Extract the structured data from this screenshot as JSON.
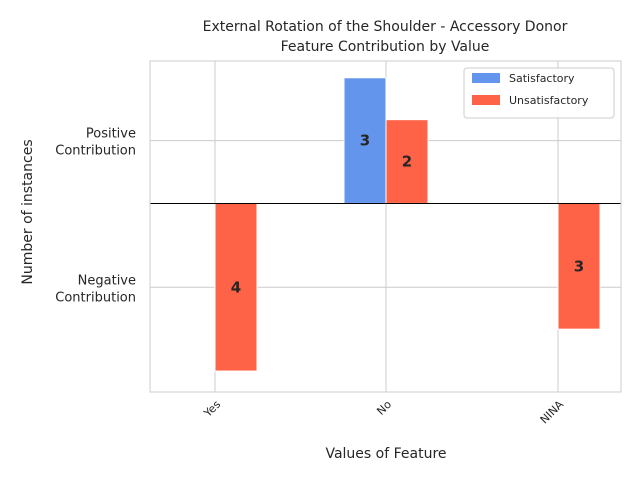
{
  "chart_data": {
    "type": "bar",
    "title_line1": "External Rotation of the Shoulder - Accessory Donor",
    "title_line2": "Feature Contribution by Value",
    "xlabel": "Values of Feature",
    "ylabel": "Number of instances",
    "categories": [
      "Yes",
      "No",
      "NINA"
    ],
    "series": [
      {
        "name": "Satisfactory",
        "color": "#6495ED",
        "values": [
          0,
          3,
          0
        ]
      },
      {
        "name": "Unsatisfactory",
        "color": "#FF6347",
        "values": [
          -4,
          2,
          -3
        ]
      }
    ],
    "ytick_labels": [
      {
        "line1": "Positive",
        "line2": "Contribution",
        "value": 1.5
      },
      {
        "line1": "Negative",
        "line2": "Contribution",
        "value": -2
      }
    ],
    "ylim": [
      -4.5,
      3.4
    ],
    "grid": true,
    "legend_position": "top-right"
  }
}
